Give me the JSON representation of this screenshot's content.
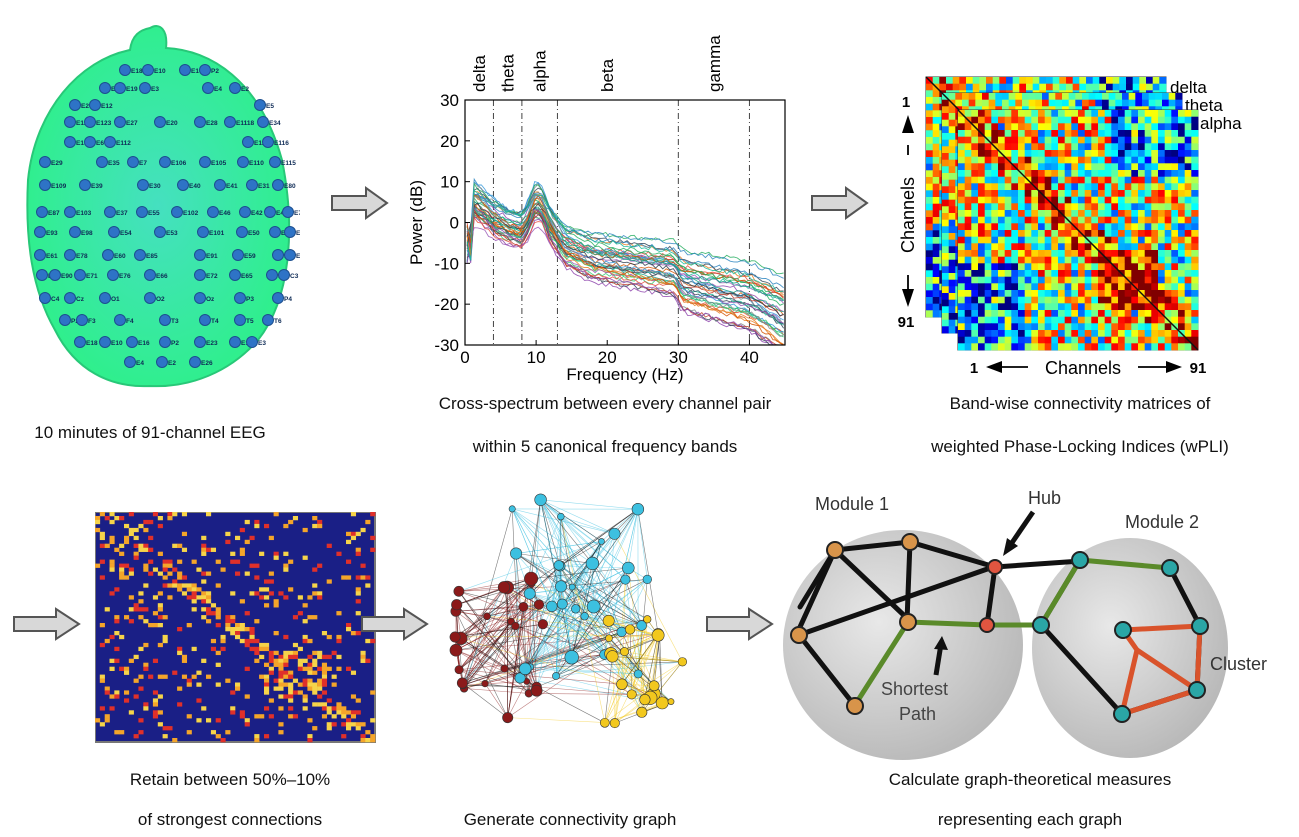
{
  "captions": {
    "eeg": "10 minutes of 91-channel EEG",
    "spectrum_1": "Cross-spectrum between every channel pair",
    "spectrum_2": "within 5 canonical frequency bands",
    "matrices_1": "Band-wise connectivity matrices of",
    "matrices_2": "weighted Phase-Locking Indices (wPLI)",
    "threshold_1": "Retain between 50%–10%",
    "threshold_2": "of strongest connections",
    "graph": "Generate connectivity graph",
    "measures_1": "Calculate graph-theoretical measures",
    "measures_2": "representing each graph"
  },
  "eeg_electrodes": [
    "E18",
    "E10",
    "E16",
    "P2",
    "E23",
    "E19",
    "E3",
    "E4",
    "E2",
    "E26",
    "E12",
    "E5",
    "E118",
    "E123",
    "E27",
    "E20",
    "E28",
    "E1118",
    "E34",
    "E13",
    "E6",
    "E112",
    "E111",
    "E116",
    "E29",
    "E35",
    "E7",
    "E106",
    "E105",
    "E110",
    "E115",
    "E109",
    "E39",
    "E30",
    "E40",
    "E41",
    "E31",
    "E80",
    "E87",
    "E103",
    "E37",
    "E55",
    "E102",
    "E46",
    "E42",
    "E47",
    "E79",
    "E93",
    "E98",
    "E54",
    "E53",
    "E101",
    "E50",
    "E97",
    "E86",
    "E61",
    "E78",
    "E60",
    "E85",
    "E91",
    "E59",
    "E67",
    "E77",
    "E84",
    "E90",
    "E71",
    "E76",
    "E66",
    "E72",
    "E65",
    "E83",
    "C3",
    "C4",
    "Cz",
    "O1",
    "O2",
    "Oz",
    "P3",
    "P4",
    "Pz",
    "F3",
    "F4",
    "T3",
    "T4",
    "T5",
    "T6"
  ],
  "chart_data": {
    "type": "line",
    "xlabel": "Frequency (Hz)",
    "ylabel": "Power (dB)",
    "xlim": [
      0,
      45
    ],
    "ylim": [
      -30,
      30
    ],
    "x_ticks": [
      0,
      10,
      20,
      30,
      40
    ],
    "y_ticks": [
      30,
      20,
      10,
      0,
      -10,
      -20,
      -30
    ],
    "bands": [
      {
        "name": "delta",
        "edge": 4
      },
      {
        "name": "theta",
        "edge": 8
      },
      {
        "name": "alpha",
        "edge": 13
      },
      {
        "name": "beta",
        "edge": 30
      },
      {
        "name": "gamma",
        "edge": 40
      }
    ],
    "band_label_x": [
      2,
      6,
      10.5,
      20,
      35
    ],
    "n_channels": 91,
    "mean_spectrum": {
      "x": [
        0.3,
        1,
        2,
        4,
        6,
        8,
        9,
        10,
        11,
        12,
        14,
        18,
        22,
        26,
        29.5,
        30.5,
        35,
        40,
        45
      ],
      "y": [
        -5,
        5,
        4,
        1,
        -1,
        -2,
        1,
        5,
        3,
        -1,
        -6,
        -9,
        -10,
        -11,
        -12,
        -15,
        -17,
        -19,
        -24
      ]
    }
  },
  "matrices": {
    "layers": [
      "delta",
      "theta",
      "alpha"
    ],
    "axis_label": "Channels",
    "tick_start": "1",
    "tick_end": "91"
  },
  "graph_labels": {
    "module1": "Module 1",
    "module2": "Module 2",
    "hub": "Hub",
    "cluster": "Cluster",
    "shortest_path_1": "Shortest",
    "shortest_path_2": "Path"
  },
  "colors": {
    "scalp": "#2ef08a",
    "electrode": "#2e73c6",
    "delta": "#0070c0",
    "module_fill": "#cfcfcf",
    "edge": "#111111",
    "shortest_path": "#5a8a2a",
    "cluster_edge": "#d9532b",
    "threshold_bg": "#1a1f86"
  }
}
